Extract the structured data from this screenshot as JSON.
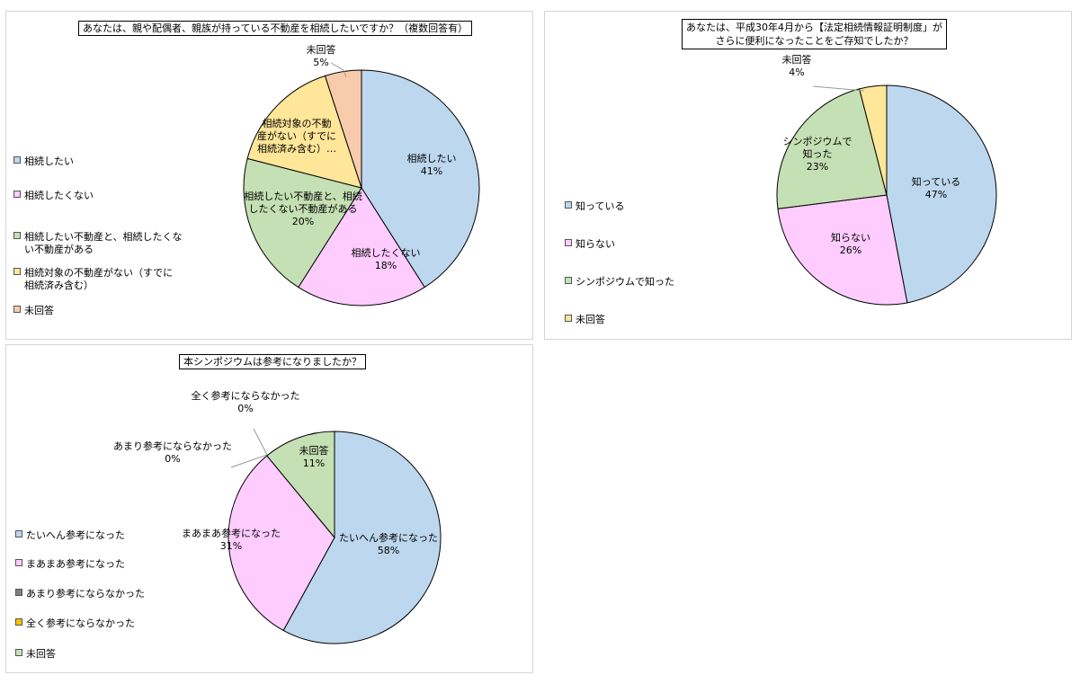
{
  "colors": {
    "blue": "#bdd7ee",
    "pink": "#ffccff",
    "green": "#c5e0b4",
    "yellow": "#ffe699",
    "orange": "#f8cbad",
    "gray": "#7f7f7f",
    "gold": "#ffc000"
  },
  "chart_data": [
    {
      "type": "pie",
      "title": "あなたは、親や配偶者、親族が持っている不動産を相続したいですか？（複数回答有）",
      "series": [
        {
          "name": "相続したい",
          "value": 41,
          "label": "41%",
          "color": "#bdd7ee"
        },
        {
          "name": "相続したくない",
          "value": 18,
          "label": "18%",
          "color": "#ffccff"
        },
        {
          "name": "相続したい不動産と、相続したくない不動産がある",
          "value": 20,
          "label": "20%",
          "color": "#c5e0b4"
        },
        {
          "name": "相続対象の不動産がない（すでに相続済み含む）",
          "value": 16,
          "label": "",
          "color": "#ffe699"
        },
        {
          "name": "未回答",
          "value": 5,
          "label": "5%",
          "color": "#f8cbad"
        }
      ],
      "legend": [
        [
          "相続したい"
        ],
        [
          "相続したくない"
        ],
        [
          "相続したい不動産と、相続したくな",
          "い不動産がある"
        ],
        [
          "相続対象の不動産がない（すでに",
          "相続済み含む）"
        ],
        [
          "未回答"
        ]
      ],
      "slice_labels": [
        [
          "相続したい",
          "41%"
        ],
        [
          "相続したくない",
          "18%"
        ],
        [
          "相続したい不動産と、相続",
          "したくない不動産がある",
          "20%"
        ],
        [
          "相続対象の不動",
          "産がない（すでに",
          "相続済み含む）…"
        ],
        [
          "未回答",
          "5%"
        ]
      ],
      "legend_position": "left"
    },
    {
      "type": "pie",
      "title": "あなたは、平成30年4月から【法定相続情報証明制度」がさらに便利になったことをご存知でしたか？",
      "title_lines": [
        "あなたは、平成30年4月から【法定相続情報証明制度」が",
        "さらに便利になったことをご存知でしたか？"
      ],
      "series": [
        {
          "name": "知っている",
          "value": 47,
          "label": "47%",
          "color": "#bdd7ee"
        },
        {
          "name": "知らない",
          "value": 26,
          "label": "26%",
          "color": "#ffccff"
        },
        {
          "name": "シンポジウムで知った",
          "value": 23,
          "label": "23%",
          "color": "#c5e0b4"
        },
        {
          "name": "未回答",
          "value": 4,
          "label": "4%",
          "color": "#ffe699"
        }
      ],
      "legend": [
        [
          "知っている"
        ],
        [
          "知らない"
        ],
        [
          "シンポジウムで知った"
        ],
        [
          "未回答"
        ]
      ],
      "slice_labels": [
        [
          "知っている",
          "47%"
        ],
        [
          "知らない",
          "26%"
        ],
        [
          "シンポジウムで",
          "知った",
          "23%"
        ],
        [
          "未回答",
          "4%"
        ]
      ],
      "legend_position": "left"
    },
    {
      "type": "pie",
      "title": "本シンポジウムは参考になりましたか？",
      "series": [
        {
          "name": "たいへん参考になった",
          "value": 58,
          "label": "58%",
          "color": "#bdd7ee"
        },
        {
          "name": "まあまあ参考になった",
          "value": 31,
          "label": "31%",
          "color": "#ffccff"
        },
        {
          "name": "あまり参考にならなかった",
          "value": 0,
          "label": "0%",
          "color": "#7f7f7f"
        },
        {
          "name": "全く参考にならなかった",
          "value": 0,
          "label": "0%",
          "color": "#ffc000"
        },
        {
          "name": "未回答",
          "value": 11,
          "label": "11%",
          "color": "#c5e0b4"
        }
      ],
      "legend": [
        [
          "たいへん参考になった"
        ],
        [
          "まあまあ参考になった"
        ],
        [
          "あまり参考にならなかった"
        ],
        [
          "全く参考にならなかった"
        ],
        [
          "未回答"
        ]
      ],
      "slice_labels": [
        [
          "たいへん参考になった",
          "58%"
        ],
        [
          "まあまあ参考になった",
          "31%"
        ],
        [
          "あまり参考にならなかった",
          "0%"
        ],
        [
          "全く参考にならなかった",
          "0%"
        ],
        [
          "未回答",
          "11%"
        ]
      ],
      "legend_position": "left"
    }
  ]
}
